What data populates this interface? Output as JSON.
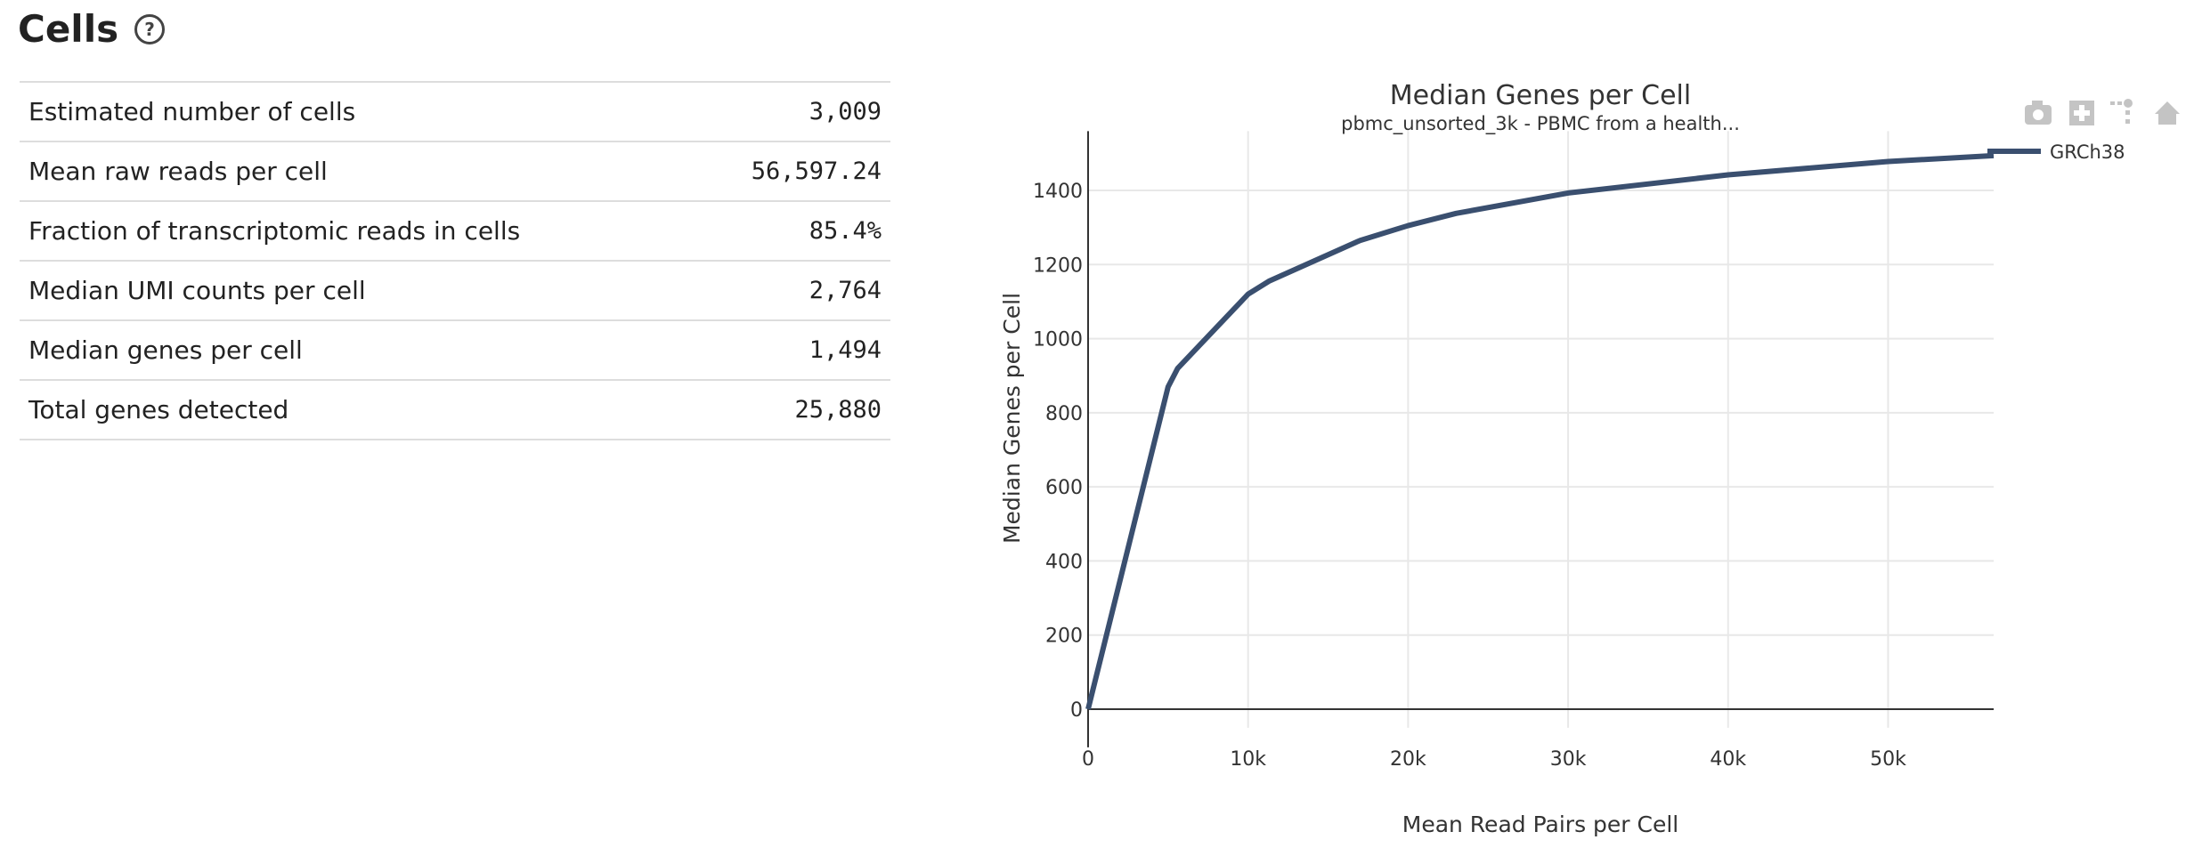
{
  "section": {
    "title": "Cells",
    "help_icon": "question-circle-icon"
  },
  "metrics": [
    {
      "label": "Estimated number of cells",
      "value": "3,009"
    },
    {
      "label": "Mean raw reads per cell",
      "value": "56,597.24"
    },
    {
      "label": "Fraction of transcriptomic reads in cells",
      "value": "85.4%"
    },
    {
      "label": "Median UMI counts per cell",
      "value": "2,764"
    },
    {
      "label": "Median genes per cell",
      "value": "1,494"
    },
    {
      "label": "Total genes detected",
      "value": "25,880"
    }
  ],
  "chart_data": {
    "type": "line",
    "title": "Median Genes per Cell",
    "subtitle": "pbmc_unsorted_3k - PBMC from a health...",
    "xlabel": "Mean Read Pairs per Cell",
    "ylabel": "Median Genes per Cell",
    "xlim": [
      0,
      56597
    ],
    "ylim": [
      -50,
      1560
    ],
    "xticks": [
      {
        "v": 0,
        "label": "0"
      },
      {
        "v": 10000,
        "label": "10k"
      },
      {
        "v": 20000,
        "label": "20k"
      },
      {
        "v": 30000,
        "label": "30k"
      },
      {
        "v": 40000,
        "label": "40k"
      },
      {
        "v": 50000,
        "label": "50k"
      }
    ],
    "yticks": [
      {
        "v": 0,
        "label": "0"
      },
      {
        "v": 200,
        "label": "200"
      },
      {
        "v": 400,
        "label": "400"
      },
      {
        "v": 600,
        "label": "600"
      },
      {
        "v": 800,
        "label": "800"
      },
      {
        "v": 1000,
        "label": "1000"
      },
      {
        "v": 1200,
        "label": "1200"
      },
      {
        "v": 1400,
        "label": "1400"
      }
    ],
    "grid": true,
    "legend_position": "top-right",
    "series": [
      {
        "name": "GRCh38",
        "color": "#3a4f6f",
        "x": [
          0,
          5000,
          5600,
          10000,
          11300,
          17000,
          20000,
          23000,
          30000,
          40000,
          50000,
          56597
        ],
        "y": [
          0,
          870,
          920,
          1120,
          1155,
          1265,
          1305,
          1338,
          1393,
          1442,
          1478,
          1494
        ]
      }
    ]
  },
  "modebar": [
    "camera-icon",
    "zoom-in-icon",
    "autoscale-icon",
    "home-icon"
  ]
}
